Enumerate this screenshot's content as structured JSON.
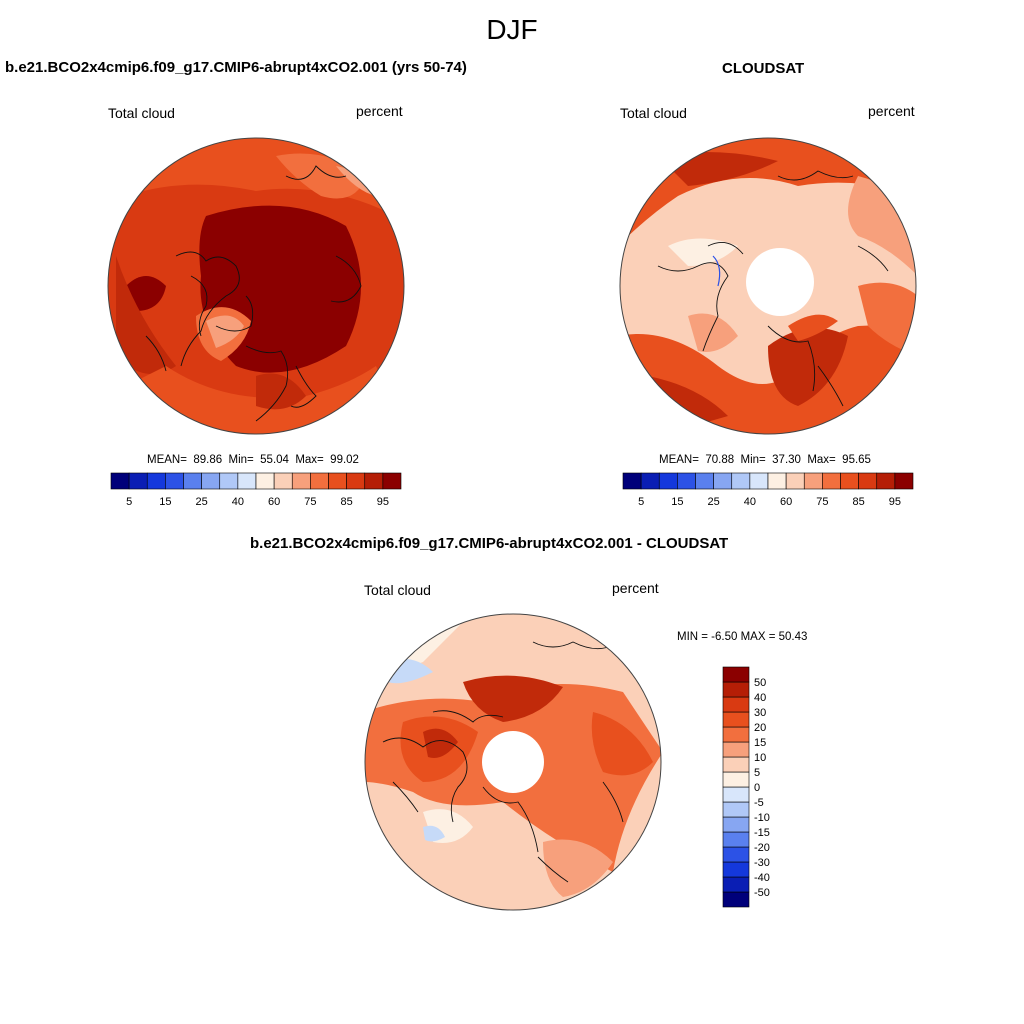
{
  "page": {
    "season": "DJF",
    "colors": {
      "lowest": "#00007a",
      "low": "#2c52e6",
      "mid_low": "#c6daf8",
      "neutral": "#fdf0e3",
      "mid_high": "#f7a07c",
      "high": "#e8501e",
      "highest": "#8b0000"
    }
  },
  "chart_data": [
    {
      "type": "heatmap",
      "projection": "north polar stereographic",
      "title": "b.e21.BCO2x4cmip6.f09_g17.CMIP6-abrupt4xCO2.001 (yrs 50-74)",
      "left_label": "Total cloud",
      "right_label": "percent",
      "stats": {
        "mean_label": "MEAN=",
        "mean": "89.86",
        "min_label": "Min=",
        "min": "55.04",
        "max_label": "Max=",
        "max": "99.02"
      },
      "colorbar": {
        "orientation": "horizontal",
        "levels": [
          5,
          10,
          15,
          20,
          25,
          30,
          40,
          50,
          60,
          70,
          75,
          80,
          85,
          90,
          95
        ],
        "tick_labels": [
          "5",
          "15",
          "25",
          "40",
          "60",
          "75",
          "85",
          "95"
        ]
      }
    },
    {
      "type": "heatmap",
      "projection": "north polar stereographic",
      "title": "CLOUDSAT",
      "left_label": "Total cloud",
      "right_label": "percent",
      "stats": {
        "mean_label": "MEAN=",
        "mean": "70.88",
        "min_label": "Min=",
        "min": "37.30",
        "max_label": "Max=",
        "max": "95.65"
      },
      "colorbar": {
        "orientation": "horizontal",
        "levels": [
          5,
          10,
          15,
          20,
          25,
          30,
          40,
          50,
          60,
          70,
          75,
          80,
          85,
          90,
          95
        ],
        "tick_labels": [
          "5",
          "15",
          "25",
          "40",
          "60",
          "75",
          "85",
          "95"
        ]
      }
    },
    {
      "type": "heatmap",
      "projection": "north polar stereographic",
      "title": "b.e21.BCO2x4cmip6.f09_g17.CMIP6-abrupt4xCO2.001 - CLOUDSAT",
      "left_label": "Total cloud",
      "right_label": "percent",
      "stats_text": "MIN =  -6.50 MAX =  50.43",
      "colorbar": {
        "orientation": "vertical",
        "levels": [
          -50,
          -40,
          -30,
          -20,
          -15,
          -10,
          -5,
          0,
          5,
          10,
          15,
          20,
          30,
          40,
          50
        ],
        "tick_labels": [
          "50",
          "40",
          "30",
          "20",
          "15",
          "10",
          "5",
          "0",
          "-5",
          "-10",
          "-15",
          "-20",
          "-30",
          "-40",
          "-50"
        ]
      }
    }
  ]
}
